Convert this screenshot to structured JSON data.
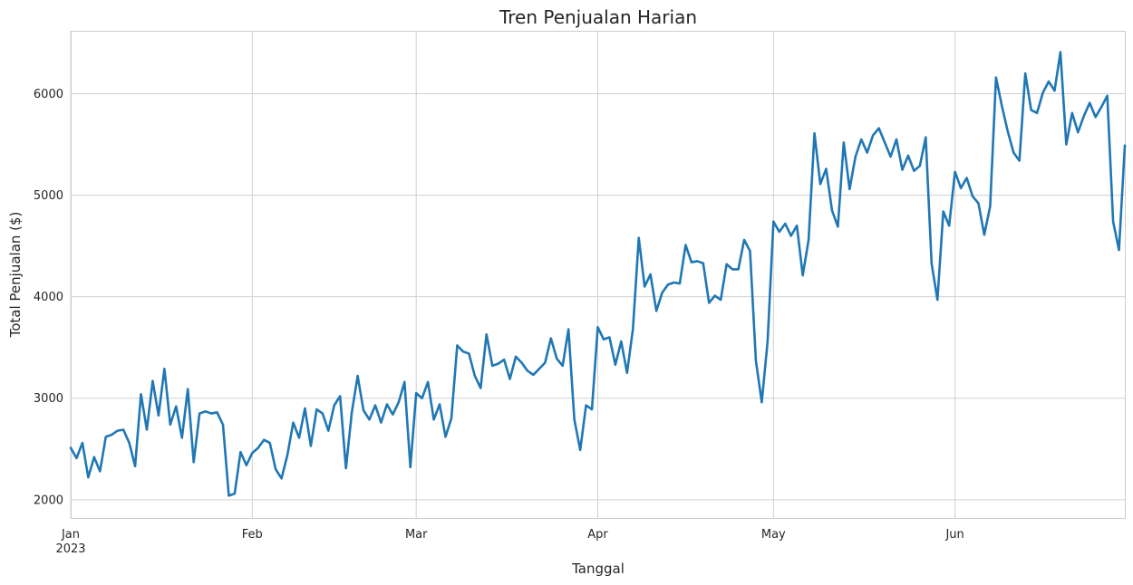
{
  "chart_data": {
    "type": "line",
    "title": "Tren Penjualan Harian",
    "xlabel": "Tanggal",
    "ylabel": "Total Penjualan ($)",
    "x_range": [
      "2023-01-01",
      "2023-06-30"
    ],
    "ylim": [
      1820,
      6620
    ],
    "grid": true,
    "legend": "none",
    "x_ticks": [
      {
        "date": "2023-01-01",
        "label": "Jan",
        "sublabel": "2023"
      },
      {
        "date": "2023-02-01",
        "label": "Feb"
      },
      {
        "date": "2023-03-01",
        "label": "Mar"
      },
      {
        "date": "2023-04-01",
        "label": "Apr"
      },
      {
        "date": "2023-05-01",
        "label": "May"
      },
      {
        "date": "2023-06-01",
        "label": "Jun"
      }
    ],
    "y_ticks": [
      2000,
      3000,
      4000,
      5000,
      6000
    ],
    "series": [
      {
        "color": "#1f77b4",
        "start_date": "2023-01-01",
        "values": [
          2510,
          2410,
          2560,
          2220,
          2420,
          2280,
          2620,
          2640,
          2680,
          2690,
          2560,
          2330,
          3040,
          2690,
          3170,
          2830,
          3290,
          2740,
          2920,
          2610,
          3090,
          2370,
          2850,
          2870,
          2850,
          2860,
          2740,
          2040,
          2060,
          2470,
          2340,
          2460,
          2510,
          2590,
          2560,
          2300,
          2210,
          2440,
          2760,
          2610,
          2900,
          2530,
          2890,
          2850,
          2680,
          2930,
          3020,
          2310,
          2860,
          3220,
          2880,
          2790,
          2930,
          2760,
          2940,
          2840,
          2960,
          3160,
          2320,
          3050,
          3000,
          3160,
          2790,
          2940,
          2620,
          2800,
          3520,
          3460,
          3440,
          3220,
          3100,
          3630,
          3320,
          3340,
          3380,
          3190,
          3410,
          3350,
          3270,
          3230,
          3290,
          3350,
          3590,
          3390,
          3320,
          3680,
          2790,
          2490,
          2930,
          2890,
          3700,
          3580,
          3600,
          3330,
          3560,
          3250,
          3680,
          4580,
          4100,
          4220,
          3860,
          4040,
          4120,
          4140,
          4130,
          4510,
          4340,
          4350,
          4330,
          3940,
          4010,
          3970,
          4320,
          4270,
          4270,
          4560,
          4450,
          3370,
          2960,
          3560,
          4740,
          4640,
          4720,
          4600,
          4700,
          4210,
          4560,
          5610,
          5110,
          5260,
          4850,
          4690,
          5520,
          5060,
          5380,
          5550,
          5420,
          5590,
          5660,
          5520,
          5380,
          5550,
          5250,
          5390,
          5240,
          5290,
          5570,
          4330,
          3970,
          4840,
          4700,
          5230,
          5070,
          5170,
          4990,
          4920,
          4610,
          4890,
          6160,
          5880,
          5630,
          5420,
          5340,
          6200,
          5840,
          5810,
          6010,
          6120,
          6030,
          6410,
          5500,
          5810,
          5620,
          5780,
          5910,
          5770,
          5870,
          5980,
          4740,
          4460,
          5490
        ]
      }
    ]
  }
}
